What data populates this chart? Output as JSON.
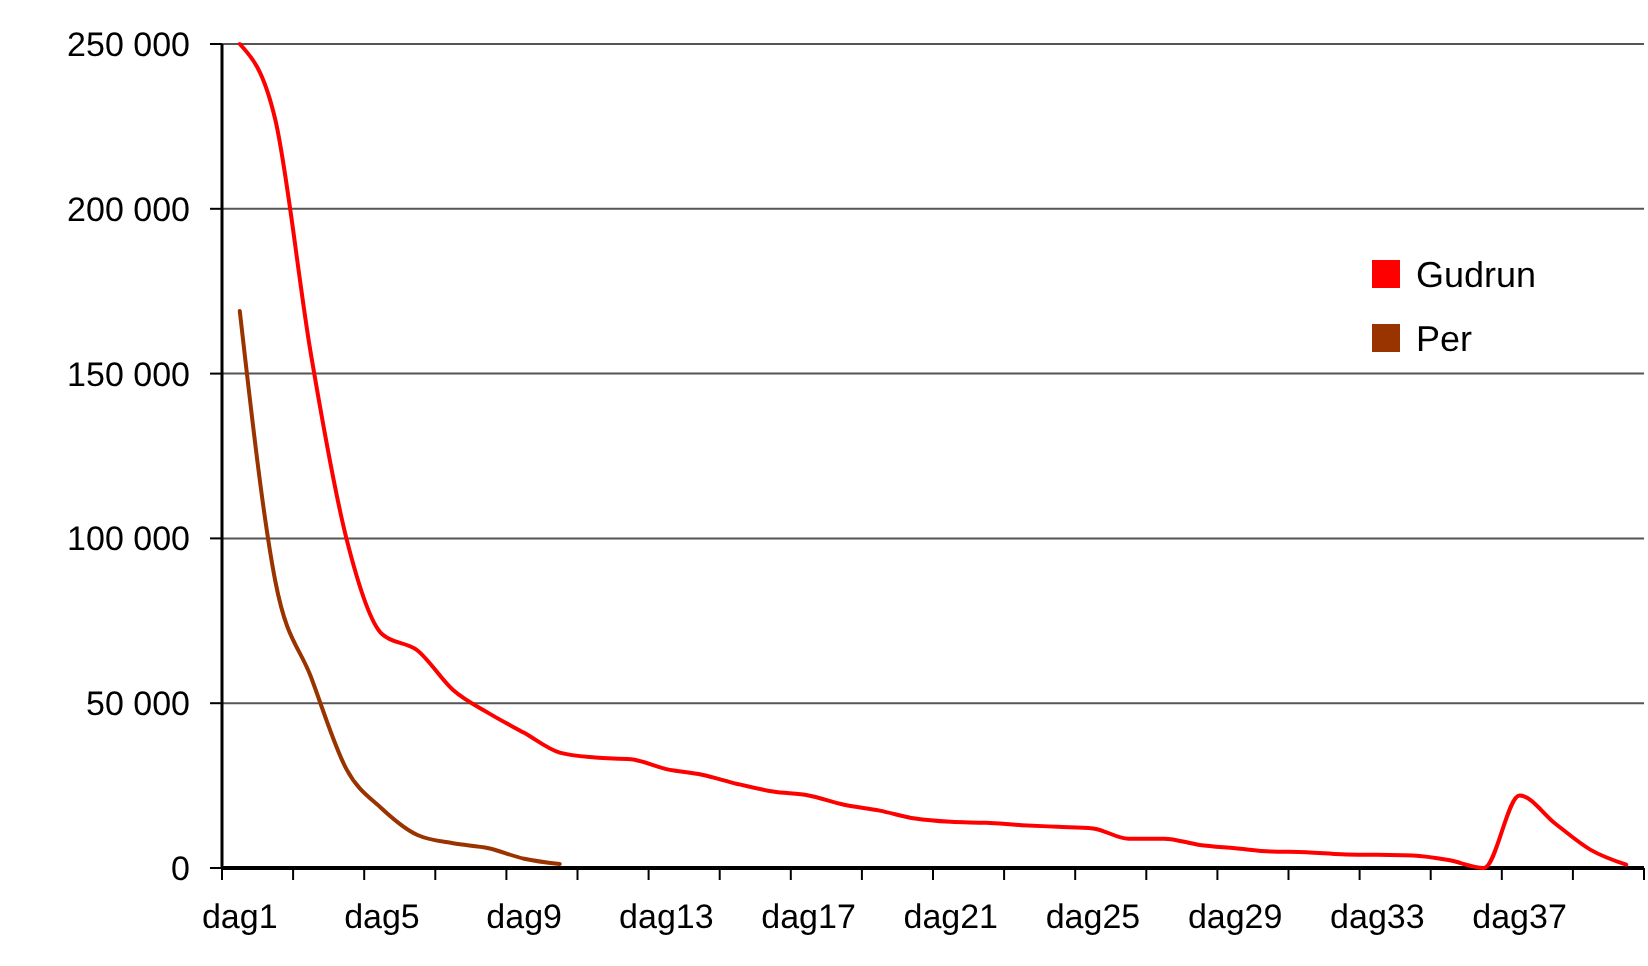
{
  "chart_data": {
    "type": "line",
    "categories": [
      "dag1",
      null,
      null,
      null,
      "dag5",
      null,
      null,
      null,
      "dag9",
      null,
      null,
      null,
      "dag13",
      null,
      null,
      null,
      "dag17",
      null,
      null,
      null,
      "dag21",
      null,
      null,
      null,
      "dag25",
      null,
      null,
      null,
      "dag29",
      null,
      null,
      null,
      "dag33",
      null,
      null,
      null,
      "dag37",
      null,
      null,
      null
    ],
    "series": [
      {
        "name": "Gudrun",
        "color": "#ff0000",
        "values": [
          250000,
          227000,
          156000,
          100000,
          71000,
          66000,
          54000,
          47000,
          41000,
          35000,
          33500,
          33000,
          30000,
          28300,
          25500,
          23200,
          22000,
          19200,
          17400,
          15000,
          14000,
          13700,
          13000,
          12500,
          12000,
          8900,
          8900,
          7000,
          6000,
          5000,
          4800,
          4200,
          4000,
          3800,
          2400,
          0,
          22000,
          13500,
          5500,
          1000
        ]
      },
      {
        "name": "Per",
        "color": "#993300",
        "values": [
          169000,
          87000,
          58000,
          30000,
          18000,
          10000,
          7500,
          6000,
          2800,
          1200,
          null,
          null,
          null,
          null,
          null,
          null,
          null,
          null,
          null,
          null,
          null,
          null,
          null,
          null,
          null,
          null,
          null,
          null,
          null,
          null,
          null,
          null,
          null,
          null,
          null,
          null,
          null,
          null,
          null,
          null
        ]
      }
    ],
    "ylim": [
      0,
      250000
    ],
    "yticks": [
      {
        "value": 0,
        "label": "0"
      },
      {
        "value": 50000,
        "label": "50 000"
      },
      {
        "value": 100000,
        "label": "100 000"
      },
      {
        "value": 150000,
        "label": "150 000"
      },
      {
        "value": 200000,
        "label": "200 000"
      },
      {
        "value": 250000,
        "label": "250 000"
      }
    ],
    "grid": "y",
    "legend": "right",
    "marker": "none",
    "line_style": "solid"
  }
}
